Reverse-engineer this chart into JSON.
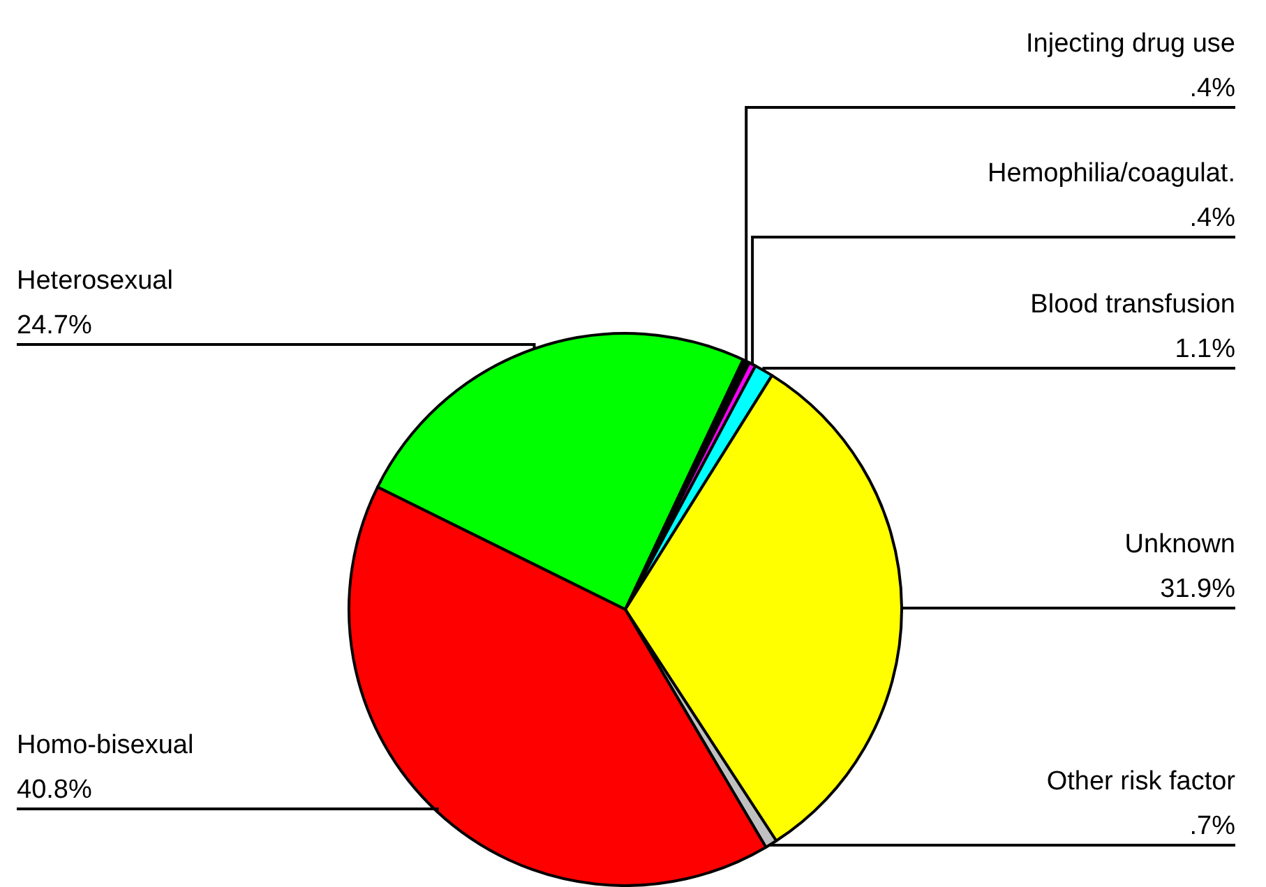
{
  "chart_data": {
    "type": "pie",
    "categories": [
      "Heterosexual",
      "Injecting drug use",
      "Hemophilia/coagulat.",
      "Blood transfusion",
      "Unknown",
      "Other risk factor",
      "Homo-bisexual"
    ],
    "values": [
      24.7,
      0.4,
      0.4,
      1.1,
      31.9,
      0.7,
      40.8
    ],
    "value_labels": [
      "24.7%",
      ".4%",
      ".4%",
      "1.1%",
      "31.9%",
      ".7%",
      "40.8%"
    ],
    "colors": [
      "#00ff00",
      "#000000",
      "#ff00ff",
      "#00ffff",
      "#ffff00",
      "#c0c0c0",
      "#ff0000"
    ]
  }
}
